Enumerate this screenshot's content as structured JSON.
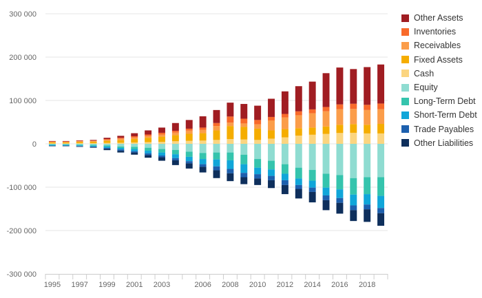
{
  "chart_data": {
    "type": "bar",
    "stacked": true,
    "title": "",
    "xlabel": "",
    "ylabel": "",
    "ylim": [
      -300000,
      300000
    ],
    "y_ticks": [
      300000,
      200000,
      100000,
      0,
      -100000,
      -200000,
      -300000
    ],
    "y_tick_labels": [
      "300 000",
      "200 000",
      "100 000",
      "0",
      "-100 000",
      "-200 000",
      "-300 000"
    ],
    "x_tick_labels": [
      "1995",
      "1997",
      "1999",
      "2001",
      "2003",
      "2006",
      "2008",
      "2010",
      "2012",
      "2014",
      "2016",
      "2018"
    ],
    "grid": "horizontal",
    "legend_position": "right",
    "categories": [
      "1995",
      "1996",
      "1997",
      "1998",
      "1999",
      "2000",
      "2001",
      "2002",
      "2003",
      "2004",
      "2005",
      "2006",
      "2007",
      "2008",
      "2009",
      "2010",
      "2011",
      "2012",
      "2013",
      "2014",
      "2015",
      "2016",
      "2017",
      "2018",
      "2019"
    ],
    "series": [
      {
        "name": "Cash",
        "color": "#fbd580",
        "values": [
          1000,
          1000,
          1500,
          1500,
          2000,
          2500,
          3000,
          4000,
          4500,
          6000,
          7000,
          7500,
          9000,
          11000,
          10000,
          9000,
          12000,
          15000,
          19000,
          21000,
          23000,
          25000,
          25500,
          24000,
          24000
        ]
      },
      {
        "name": "Fixed Assets",
        "color": "#f5ad00",
        "values": [
          2500,
          2500,
          3000,
          3500,
          5000,
          6000,
          8000,
          10000,
          12000,
          14000,
          16000,
          17000,
          22000,
          30000,
          29000,
          26000,
          19000,
          19000,
          17000,
          16500,
          17000,
          19000,
          20000,
          20000,
          22000
        ]
      },
      {
        "name": "Receivables",
        "color": "#fb9d4a",
        "values": [
          1000,
          1000,
          1500,
          1500,
          2000,
          3000,
          3500,
          4000,
          5000,
          6000,
          7500,
          8000,
          10000,
          8000,
          8000,
          10000,
          23000,
          27000,
          30000,
          33000,
          35000,
          36000,
          35000,
          34000,
          34000
        ]
      },
      {
        "name": "Inventories",
        "color": "#f86a2a",
        "values": [
          1000,
          1000,
          1000,
          1000,
          2000,
          2500,
          3000,
          3500,
          4000,
          4000,
          4500,
          5000,
          7000,
          14000,
          11000,
          10000,
          8000,
          8000,
          9000,
          9000,
          10000,
          11000,
          12000,
          12000,
          13000
        ]
      },
      {
        "name": "Other Assets",
        "color": "#a01d22",
        "values": [
          1000,
          1000,
          1000,
          1500,
          3000,
          4500,
          7000,
          9500,
          12000,
          18000,
          20000,
          26000,
          30000,
          32000,
          34000,
          33000,
          42000,
          52000,
          58000,
          64000,
          78000,
          85000,
          80000,
          87000,
          90000
        ]
      },
      {
        "name": "Equity",
        "color": "#8fdcd1",
        "values": [
          -1500,
          -1500,
          -2000,
          -2500,
          -3500,
          -6000,
          -7000,
          -9000,
          -12000,
          -14000,
          -18000,
          -21000,
          -20000,
          -20000,
          -25000,
          -35000,
          -39000,
          -47000,
          -55000,
          -60000,
          -69000,
          -72000,
          -79000,
          -77000,
          -77000
        ]
      },
      {
        "name": "Long-Term Debt",
        "color": "#35c4ad",
        "values": [
          -1000,
          -1000,
          -1500,
          -2000,
          -3000,
          -3500,
          -5000,
          -7000,
          -8000,
          -10000,
          -12000,
          -14000,
          -16000,
          -18000,
          -22000,
          -20000,
          -20000,
          -22000,
          -25000,
          -25000,
          -32000,
          -33000,
          -38000,
          -39000,
          -43000
        ]
      },
      {
        "name": "Short-Term Debt",
        "color": "#10a6d9",
        "values": [
          -1500,
          -1500,
          -1500,
          -2000,
          -3000,
          -3500,
          -5000,
          -6000,
          -7000,
          -9000,
          -10000,
          -12000,
          -16000,
          -20000,
          -20000,
          -15000,
          -15000,
          -15000,
          -15000,
          -16000,
          -18000,
          -20000,
          -25000,
          -24000,
          -28000
        ]
      },
      {
        "name": "Trade Payables",
        "color": "#1d60ae",
        "values": [
          -500,
          -500,
          -1000,
          -1000,
          -2000,
          -3000,
          -3000,
          -4000,
          -4000,
          -5000,
          -5000,
          -6000,
          -9000,
          -10000,
          -10000,
          -10000,
          -10000,
          -11000,
          -9000,
          -10000,
          -11000,
          -11000,
          -11000,
          -11000,
          -12000
        ]
      },
      {
        "name": "Other Liabilities",
        "color": "#0e2f5c",
        "values": [
          -1000,
          -1000,
          -1000,
          -1500,
          -3000,
          -4000,
          -5000,
          -6000,
          -8000,
          -11000,
          -12000,
          -13000,
          -18000,
          -18000,
          -16000,
          -15000,
          -18000,
          -21000,
          -22000,
          -24000,
          -23000,
          -25000,
          -25000,
          -29000,
          -29000
        ]
      }
    ],
    "legend_order": [
      "Other Assets",
      "Inventories",
      "Receivables",
      "Fixed Assets",
      "Cash",
      "Equity",
      "Long-Term Debt",
      "Short-Term Debt",
      "Trade Payables",
      "Other Liabilities"
    ]
  }
}
